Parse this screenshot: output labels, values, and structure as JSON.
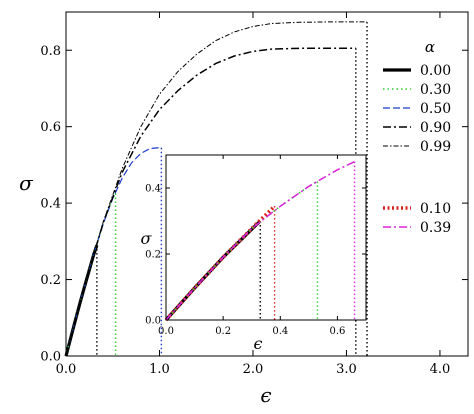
{
  "chart_data": [
    {
      "panel": "main",
      "type": "line",
      "xlabel": "ϵ",
      "ylabel": "σ",
      "xlim": [
        0.0,
        4.3
      ],
      "ylim": [
        0.0,
        0.9
      ],
      "xticks": [
        0.0,
        1.0,
        2.0,
        3.0,
        4.0
      ],
      "xtick_labels": [
        "0.0",
        "1.0",
        "2.0",
        "3.0",
        "4.0"
      ],
      "yticks": [
        0.0,
        0.2,
        0.4,
        0.6,
        0.8
      ],
      "ytick_labels": [
        "0.0",
        "0.2",
        "0.4",
        "0.6",
        "0.8"
      ],
      "grid": false,
      "legend_title": "α",
      "legend_position": "right",
      "series": [
        {
          "name": "0.00",
          "color": "#000000",
          "style": "solid-thick",
          "x": [
            0.0,
            0.05,
            0.1,
            0.15,
            0.2,
            0.25,
            0.3,
            0.33
          ],
          "y": [
            0.0,
            0.047,
            0.093,
            0.139,
            0.183,
            0.226,
            0.268,
            0.29
          ],
          "failure_strain": 0.33
        },
        {
          "name": "0.30",
          "color": "#33cc33",
          "style": "dotted",
          "x": [
            0.0,
            0.1,
            0.2,
            0.3,
            0.4,
            0.5,
            0.53
          ],
          "y": [
            0.0,
            0.094,
            0.185,
            0.27,
            0.35,
            0.413,
            0.425
          ],
          "failure_strain": 0.53
        },
        {
          "name": "0.50",
          "color": "#1a3ccc",
          "style": "dashed",
          "x": [
            0.0,
            0.1,
            0.2,
            0.3,
            0.4,
            0.5,
            0.6,
            0.7,
            0.8,
            0.9,
            1.0,
            1.02
          ],
          "y": [
            0.0,
            0.094,
            0.185,
            0.27,
            0.347,
            0.412,
            0.465,
            0.505,
            0.53,
            0.543,
            0.545,
            0.545
          ],
          "failure_strain": 1.02
        },
        {
          "name": "0.90",
          "color": "#000000",
          "style": "dash-dot",
          "x": [
            0.0,
            0.2,
            0.4,
            0.6,
            0.8,
            1.0,
            1.2,
            1.4,
            1.6,
            1.8,
            2.0,
            2.2,
            2.5,
            2.8,
            3.1
          ],
          "y": [
            0.0,
            0.185,
            0.35,
            0.48,
            0.575,
            0.645,
            0.695,
            0.735,
            0.765,
            0.785,
            0.797,
            0.803,
            0.805,
            0.805,
            0.805
          ],
          "failure_strain": 3.1
        },
        {
          "name": "0.99",
          "color": "#000000",
          "style": "dash-dot-thin",
          "x": [
            0.0,
            0.2,
            0.4,
            0.6,
            0.8,
            1.0,
            1.2,
            1.4,
            1.6,
            1.8,
            2.0,
            2.2,
            2.5,
            2.8,
            3.22
          ],
          "y": [
            0.0,
            0.186,
            0.352,
            0.49,
            0.6,
            0.685,
            0.745,
            0.79,
            0.825,
            0.848,
            0.862,
            0.87,
            0.873,
            0.874,
            0.874
          ],
          "failure_strain": 3.22
        }
      ]
    },
    {
      "panel": "inset",
      "type": "line",
      "xlabel": "ϵ",
      "ylabel": "σ",
      "xlim": [
        0.0,
        0.7
      ],
      "ylim": [
        0.0,
        0.5
      ],
      "xticks": [
        0.0,
        0.2,
        0.4,
        0.6
      ],
      "xtick_labels": [
        "0.0",
        "0.2",
        "0.4",
        "0.6"
      ],
      "yticks": [
        0.0,
        0.2,
        0.4
      ],
      "ytick_labels": [
        "0.0",
        "0.2",
        "0.4"
      ],
      "grid": false,
      "legend_position": "right",
      "series": [
        {
          "name": "0.00",
          "color": "#000000",
          "style": "solid-thick",
          "x": [
            0.0,
            0.1,
            0.2,
            0.3,
            0.33
          ],
          "y": [
            0.0,
            0.097,
            0.19,
            0.275,
            0.3
          ],
          "failure_strain": 0.33
        },
        {
          "name": "0.10",
          "color": "#dd2222",
          "style": "dotted-thick",
          "x": [
            0.0,
            0.1,
            0.2,
            0.3,
            0.38
          ],
          "y": [
            0.0,
            0.097,
            0.19,
            0.277,
            0.345
          ],
          "failure_strain": 0.38
        },
        {
          "name": "0.30",
          "color": "#33cc33",
          "style": "dotted",
          "x": [
            0.0,
            0.1,
            0.2,
            0.3,
            0.4,
            0.5,
            0.53
          ],
          "y": [
            0.0,
            0.097,
            0.19,
            0.277,
            0.345,
            0.405,
            0.42
          ],
          "failure_strain": 0.53
        },
        {
          "name": "0.39",
          "color": "#dd22dd",
          "style": "dash-dot",
          "x": [
            0.0,
            0.1,
            0.2,
            0.3,
            0.4,
            0.5,
            0.6,
            0.66
          ],
          "y": [
            0.0,
            0.097,
            0.19,
            0.277,
            0.345,
            0.405,
            0.455,
            0.48
          ],
          "failure_strain": 0.66
        }
      ]
    }
  ]
}
